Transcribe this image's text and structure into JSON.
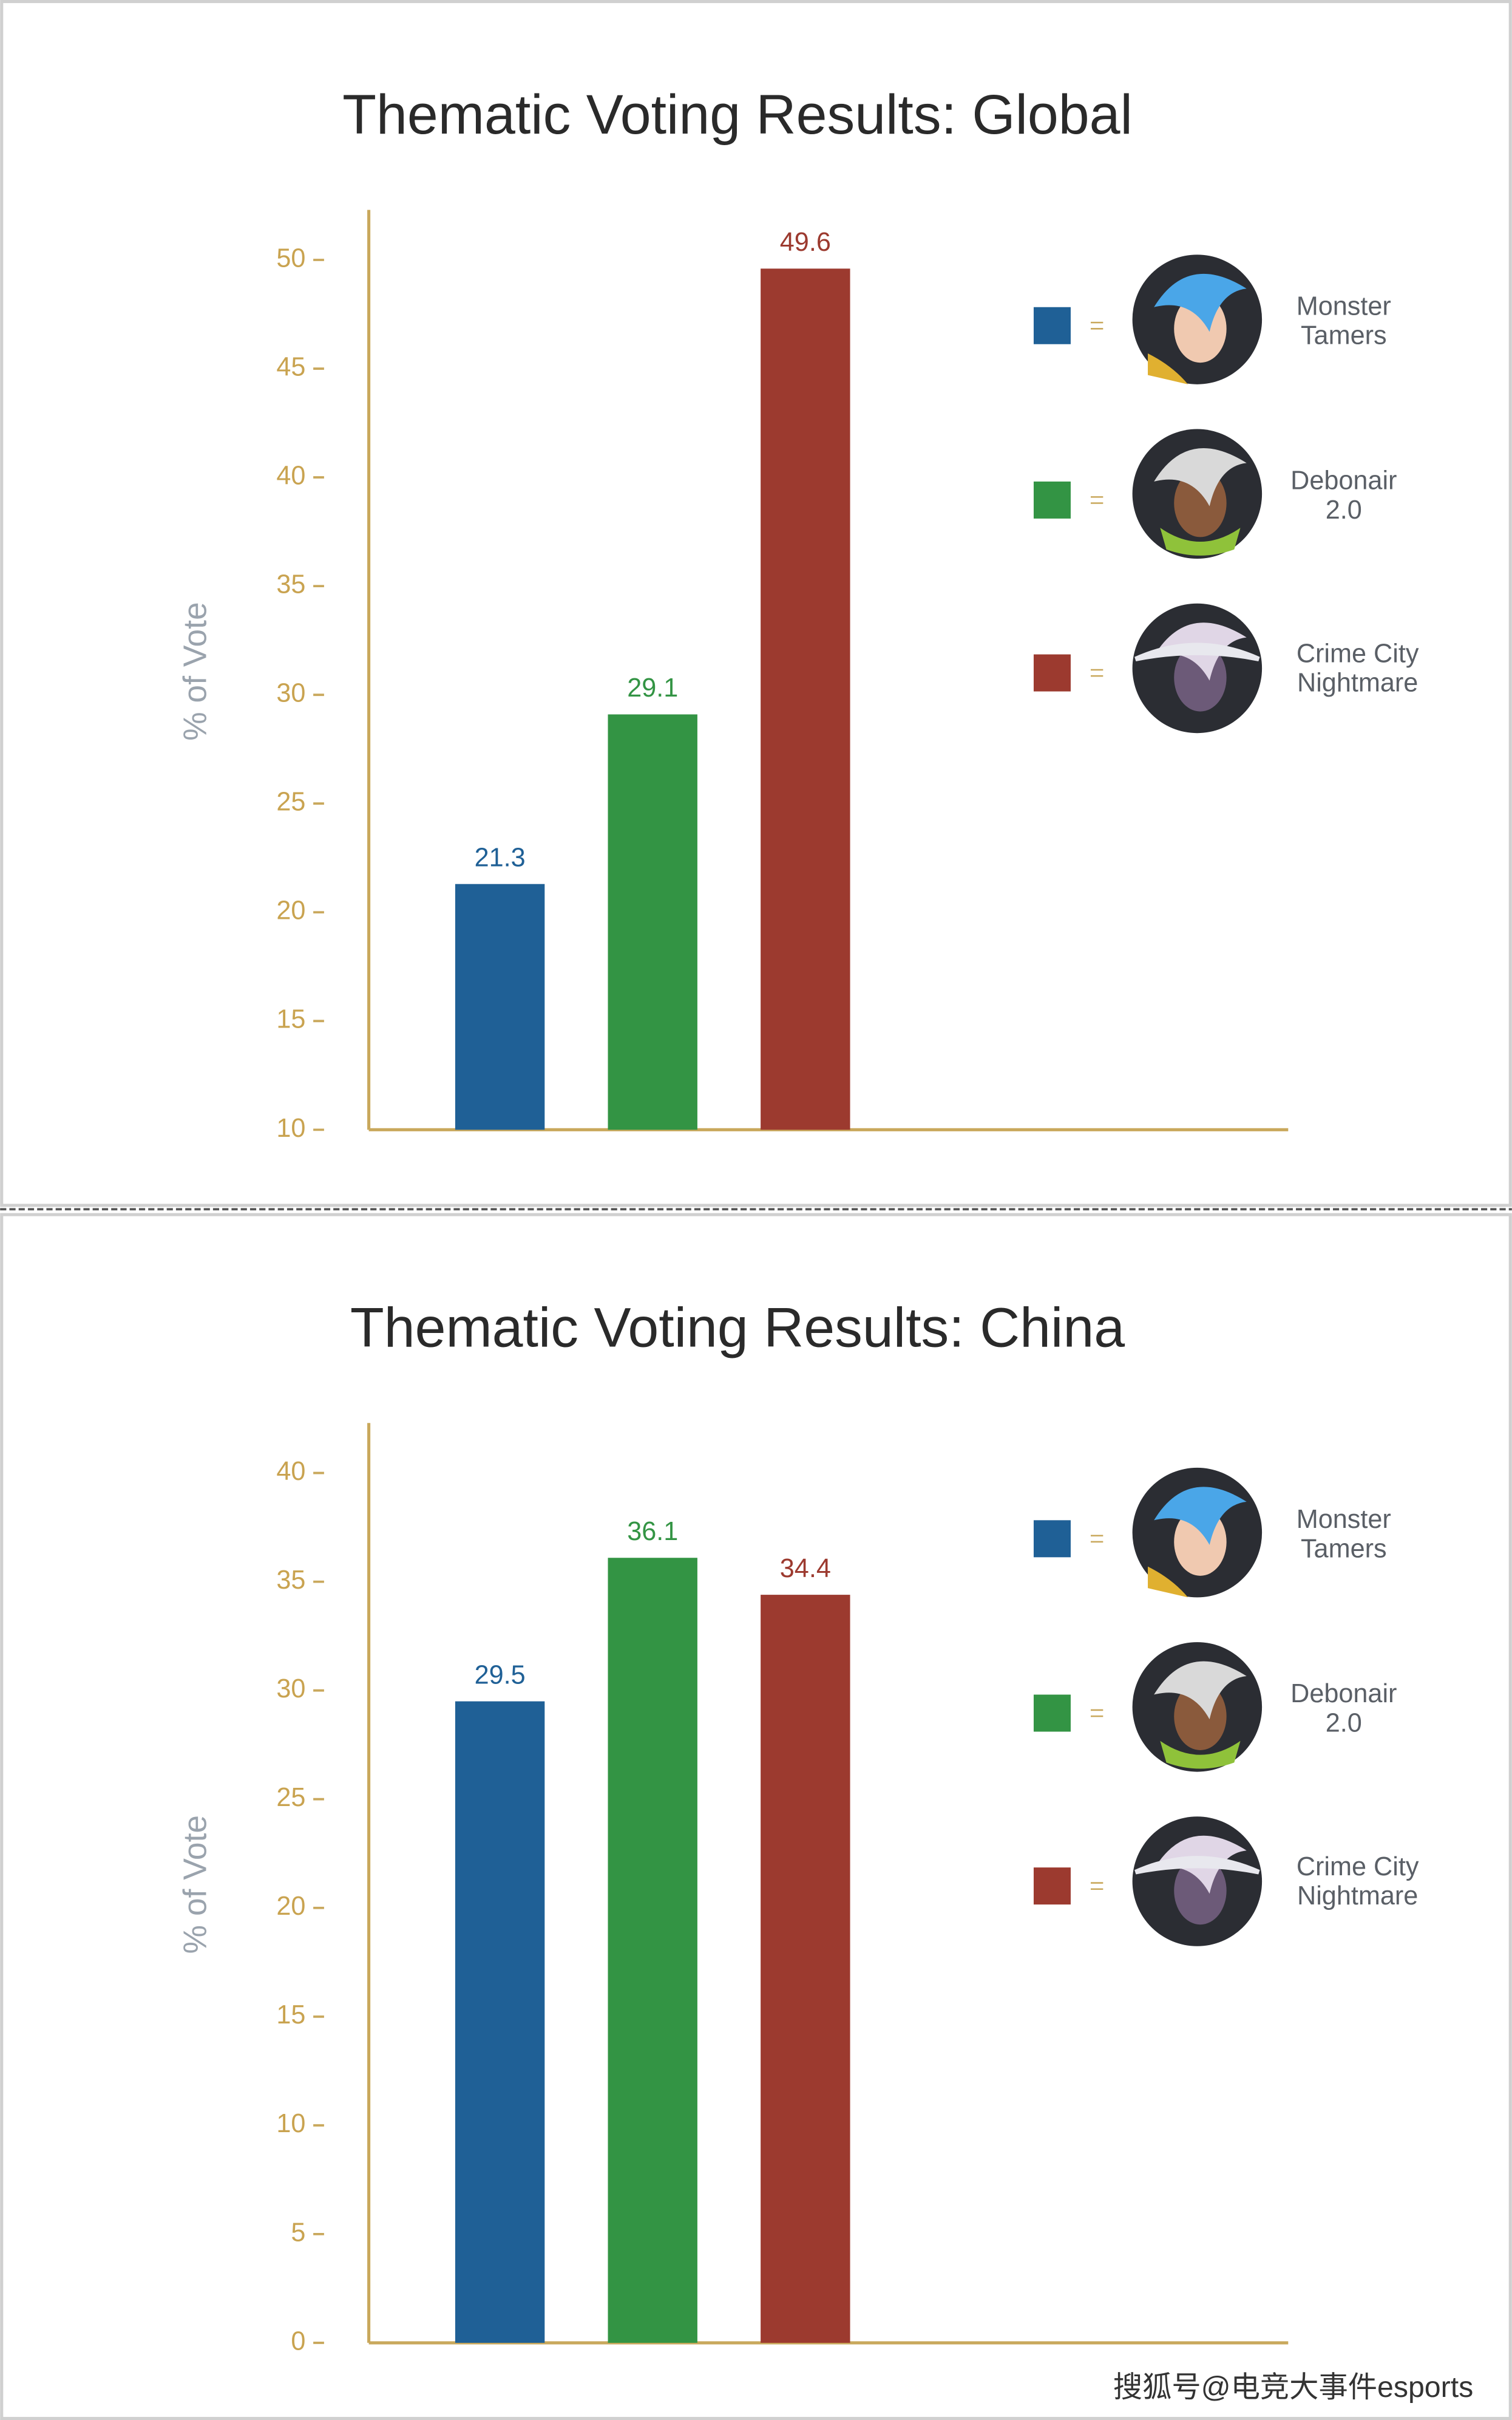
{
  "chart_data": [
    {
      "type": "bar",
      "title": "Thematic Voting Results: Global",
      "y_label": "% of Vote",
      "ylim": [
        10,
        52.3
      ],
      "yticks": [
        10,
        15,
        20,
        25,
        30,
        35,
        40,
        45,
        50
      ],
      "series": [
        {
          "name": "Monster Tamers",
          "color": "#1f6096",
          "values": [
            21.3
          ]
        },
        {
          "name": "Debonair 2.0",
          "color": "#339444",
          "values": [
            29.1
          ]
        },
        {
          "name": "Crime City Nightmare",
          "color": "#9c3a2f",
          "values": [
            49.6
          ]
        }
      ]
    },
    {
      "type": "bar",
      "title": "Thematic Voting Results: China",
      "y_label": "% of Vote",
      "ylim": [
        0,
        42.3
      ],
      "yticks": [
        0,
        5,
        10,
        15,
        20,
        25,
        30,
        35,
        40
      ],
      "series": [
        {
          "name": "Monster Tamers",
          "color": "#1f6096",
          "values": [
            29.5
          ]
        },
        {
          "name": "Debonair 2.0",
          "color": "#339444",
          "values": [
            36.1
          ]
        },
        {
          "name": "Crime City Nightmare",
          "color": "#9c3a2f",
          "values": [
            34.4
          ]
        }
      ]
    }
  ],
  "watermark": "搜狐号@电竞大事件esports"
}
